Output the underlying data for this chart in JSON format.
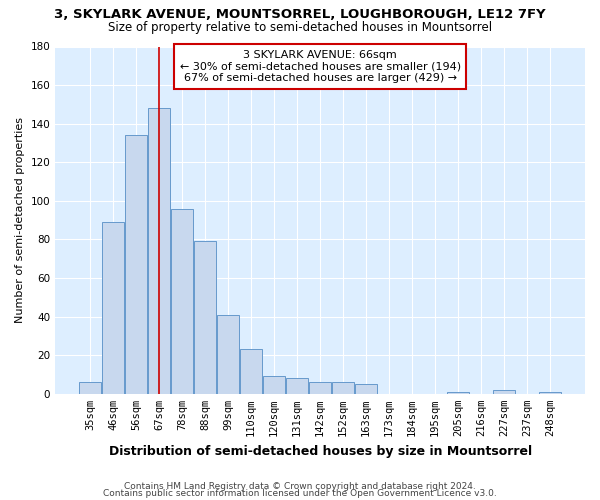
{
  "title": "3, SKYLARK AVENUE, MOUNTSORREL, LOUGHBOROUGH, LE12 7FY",
  "subtitle": "Size of property relative to semi-detached houses in Mountsorrel",
  "xlabel": "Distribution of semi-detached houses by size in Mountsorrel",
  "ylabel": "Number of semi-detached properties",
  "bar_labels": [
    "35sqm",
    "46sqm",
    "56sqm",
    "67sqm",
    "78sqm",
    "88sqm",
    "99sqm",
    "110sqm",
    "120sqm",
    "131sqm",
    "142sqm",
    "152sqm",
    "163sqm",
    "173sqm",
    "184sqm",
    "195sqm",
    "205sqm",
    "216sqm",
    "227sqm",
    "237sqm",
    "248sqm"
  ],
  "bar_values": [
    6,
    89,
    134,
    148,
    96,
    79,
    41,
    23,
    9,
    8,
    6,
    6,
    5,
    0,
    0,
    0,
    1,
    0,
    2,
    0,
    1
  ],
  "bar_color": "#c8d8ee",
  "bar_edge_color": "#6699cc",
  "ylim": [
    0,
    180
  ],
  "yticks": [
    0,
    20,
    40,
    60,
    80,
    100,
    120,
    140,
    160,
    180
  ],
  "vline_index": 3,
  "vline_color": "#cc0000",
  "annotation_line1": "3 SKYLARK AVENUE: 66sqm",
  "annotation_line2": "← 30% of semi-detached houses are smaller (194)",
  "annotation_line3": "67% of semi-detached houses are larger (429) →",
  "annotation_box_edge": "#cc0000",
  "footer1": "Contains HM Land Registry data © Crown copyright and database right 2024.",
  "footer2": "Contains public sector information licensed under the Open Government Licence v3.0.",
  "fig_bg_color": "#ffffff",
  "plot_bg_color": "#ddeeff",
  "grid_color": "#ffffff",
  "title_fontsize": 9.5,
  "subtitle_fontsize": 8.5,
  "xlabel_fontsize": 9,
  "ylabel_fontsize": 8,
  "tick_fontsize": 7.5,
  "annot_fontsize": 8,
  "footer_fontsize": 6.5
}
